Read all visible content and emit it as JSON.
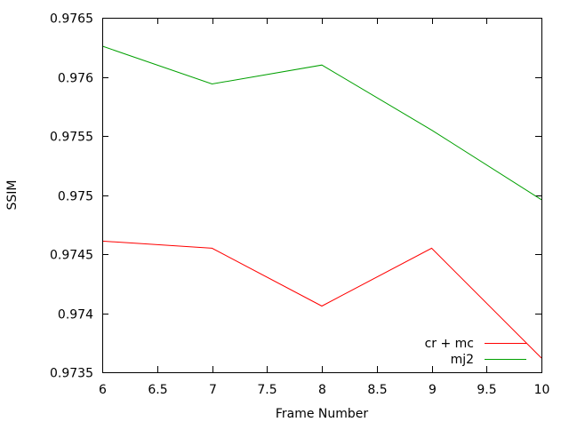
{
  "chart_data": {
    "type": "line",
    "title": "",
    "xlabel": "Frame Number",
    "ylabel": "SSIM",
    "xlim": [
      6,
      10
    ],
    "ylim": [
      0.9735,
      0.9765
    ],
    "x_ticks": [
      6,
      6.5,
      7,
      7.5,
      8,
      8.5,
      9,
      9.5,
      10
    ],
    "x_tick_labels": [
      "6",
      "6.5",
      "7",
      "7.5",
      "8",
      "8.5",
      "9",
      "9.5",
      "10"
    ],
    "y_ticks": [
      0.9735,
      0.974,
      0.9745,
      0.975,
      0.9755,
      0.976,
      0.9765
    ],
    "y_tick_labels": [
      "0.9735",
      "0.974",
      "0.9745",
      "0.975",
      "0.9755",
      "0.976",
      "0.9765"
    ],
    "grid": false,
    "legend_position": "bottom-right",
    "series": [
      {
        "name": "cr + mc",
        "color": "#ff0000",
        "x": [
          6,
          7,
          8,
          9,
          10
        ],
        "y": [
          0.97461,
          0.97455,
          0.97406,
          0.97455,
          0.97362
        ]
      },
      {
        "name": "mj2",
        "color": "#00a000",
        "x": [
          6,
          7,
          8,
          9,
          10
        ],
        "y": [
          0.97626,
          0.97594,
          0.9761,
          0.97555,
          0.97496
        ]
      }
    ]
  }
}
